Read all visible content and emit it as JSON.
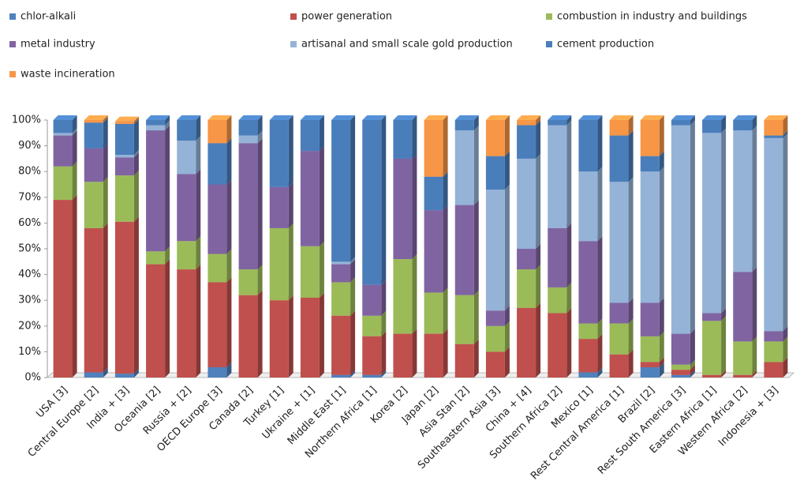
{
  "chart_data": {
    "type": "stacked-bar-3d",
    "categories": [
      "USA [3]",
      "Central Europe [2]",
      "India + [3]",
      "Oceania [2]",
      "Russia + [2]",
      "OECD Europe [3]",
      "Canada [2]",
      "Turkey [1]",
      "Ukraine + [1]",
      "Middle East [1]",
      "Northern Africa [1]",
      "Korea [2]",
      "Japan [2]",
      "Asia Stan [2]",
      "Southeastern Asia [3]",
      "China + [4]",
      "Southern Africa [2]",
      "Mexico [1]",
      "Rest Central America [1]",
      "Brazil [2]",
      "Rest South America [3]",
      "Eastern Africa [1]",
      "Western Africa [2]",
      "Indonesia + [3]"
    ],
    "series": [
      {
        "name": "chlor-alkali",
        "color": "#4f81bd",
        "values": [
          0,
          2,
          1.5,
          0,
          0,
          4,
          0,
          0,
          0,
          1,
          1,
          0,
          0,
          0,
          0,
          0,
          0,
          2,
          0,
          4,
          1,
          0,
          0,
          0
        ]
      },
      {
        "name": "power generation",
        "color": "#c0504d",
        "values": [
          69,
          56,
          59,
          44,
          42,
          33,
          32,
          30,
          31,
          23,
          15,
          17,
          17,
          13,
          10,
          27,
          25,
          13,
          9,
          2,
          2,
          1,
          1,
          6
        ]
      },
      {
        "name": "combustion in industry and buildings",
        "color": "#9bbb59",
        "values": [
          13,
          18,
          18,
          5,
          11,
          11,
          10,
          28,
          20,
          13,
          8,
          29,
          16,
          19,
          10,
          15,
          10,
          6,
          12,
          10,
          2,
          21,
          13,
          8
        ]
      },
      {
        "name": "metal industry",
        "color": "#8064a2",
        "values": [
          12,
          13,
          7,
          47,
          26,
          27,
          49,
          16,
          37,
          7,
          12,
          39,
          32,
          35,
          6,
          8,
          23,
          32,
          8,
          13,
          12,
          3,
          27,
          4
        ]
      },
      {
        "name": "artisanal and small scale gold production",
        "color": "#95b3d7",
        "values": [
          1,
          0,
          1,
          2,
          13,
          0,
          3,
          0,
          0,
          1,
          0,
          0,
          0,
          29,
          47,
          35,
          40,
          27,
          47,
          51,
          81,
          70,
          55,
          75
        ]
      },
      {
        "name": "cement production",
        "color": "#4a7ebb",
        "values": [
          5,
          10,
          12,
          2,
          8,
          16,
          6,
          26,
          12,
          55,
          64,
          15,
          13,
          4,
          13,
          13,
          2,
          20,
          18,
          6,
          2,
          5,
          4,
          1
        ]
      },
      {
        "name": "waste incineration",
        "color": "#f79646",
        "values": [
          0,
          1,
          1,
          0,
          0,
          9,
          0,
          0,
          0,
          0,
          0,
          0,
          22,
          0,
          14,
          2,
          0,
          0,
          6,
          14,
          0,
          0,
          0,
          6
        ]
      }
    ],
    "ylim": [
      0,
      100
    ],
    "yticks": [
      {
        "value": 0,
        "label": "0%"
      },
      {
        "value": 10,
        "label": "10%"
      },
      {
        "value": 20,
        "label": "20%"
      },
      {
        "value": 30,
        "label": "30%"
      },
      {
        "value": 40,
        "label": "40%"
      },
      {
        "value": 50,
        "label": "50%"
      },
      {
        "value": 60,
        "label": "60%"
      },
      {
        "value": 70,
        "label": "70%"
      },
      {
        "value": 80,
        "label": "80%"
      },
      {
        "value": 90,
        "label": "90%"
      },
      {
        "value": 100,
        "label": "100%"
      }
    ],
    "grid": false
  }
}
